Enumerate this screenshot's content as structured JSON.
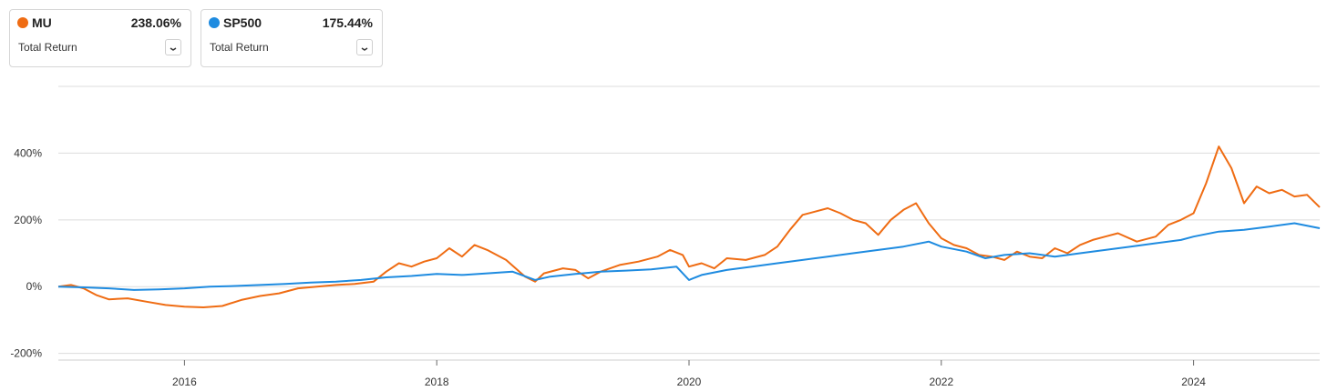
{
  "legend": [
    {
      "symbol": "MU",
      "value": "238.06%",
      "metric": "Total Return",
      "color": "#ef6c13",
      "toggle_icon": "chevron-down-icon"
    },
    {
      "symbol": "SP500",
      "value": "175.44%",
      "metric": "Total Return",
      "color": "#1e8be0",
      "toggle_icon": "chevron-down-icon"
    }
  ],
  "chart_data": {
    "type": "line",
    "xlim": [
      2015.0,
      2025.0
    ],
    "ylim": [
      -220,
      600
    ],
    "x_ticks": [
      2016,
      2018,
      2020,
      2022,
      2024
    ],
    "x_tick_labels": [
      "2016",
      "2018",
      "2020",
      "2022",
      "2024"
    ],
    "y_ticks": [
      -200,
      0,
      200,
      400,
      600
    ],
    "y_tick_labels": [
      "-200%",
      "0%",
      "200%",
      "400%",
      ""
    ],
    "grid": true,
    "legend_position": "top-left",
    "series": [
      {
        "name": "MU",
        "color": "#ef6c13",
        "points": [
          [
            2015.0,
            0
          ],
          [
            2015.1,
            5
          ],
          [
            2015.2,
            -5
          ],
          [
            2015.3,
            -25
          ],
          [
            2015.4,
            -38
          ],
          [
            2015.55,
            -35
          ],
          [
            2015.7,
            -45
          ],
          [
            2015.85,
            -55
          ],
          [
            2016.0,
            -60
          ],
          [
            2016.15,
            -62
          ],
          [
            2016.3,
            -58
          ],
          [
            2016.45,
            -40
          ],
          [
            2016.6,
            -28
          ],
          [
            2016.75,
            -20
          ],
          [
            2016.9,
            -5
          ],
          [
            2017.05,
            0
          ],
          [
            2017.2,
            5
          ],
          [
            2017.35,
            8
          ],
          [
            2017.5,
            15
          ],
          [
            2017.6,
            45
          ],
          [
            2017.7,
            70
          ],
          [
            2017.8,
            60
          ],
          [
            2017.9,
            75
          ],
          [
            2018.0,
            85
          ],
          [
            2018.1,
            115
          ],
          [
            2018.2,
            90
          ],
          [
            2018.3,
            125
          ],
          [
            2018.4,
            110
          ],
          [
            2018.55,
            80
          ],
          [
            2018.7,
            30
          ],
          [
            2018.78,
            15
          ],
          [
            2018.85,
            40
          ],
          [
            2019.0,
            55
          ],
          [
            2019.1,
            50
          ],
          [
            2019.2,
            25
          ],
          [
            2019.3,
            45
          ],
          [
            2019.45,
            65
          ],
          [
            2019.6,
            75
          ],
          [
            2019.75,
            90
          ],
          [
            2019.85,
            110
          ],
          [
            2019.95,
            95
          ],
          [
            2020.0,
            60
          ],
          [
            2020.1,
            70
          ],
          [
            2020.2,
            55
          ],
          [
            2020.3,
            85
          ],
          [
            2020.45,
            80
          ],
          [
            2020.6,
            95
          ],
          [
            2020.7,
            120
          ],
          [
            2020.8,
            170
          ],
          [
            2020.9,
            215
          ],
          [
            2021.0,
            225
          ],
          [
            2021.1,
            235
          ],
          [
            2021.2,
            220
          ],
          [
            2021.3,
            200
          ],
          [
            2021.4,
            190
          ],
          [
            2021.5,
            155
          ],
          [
            2021.6,
            200
          ],
          [
            2021.7,
            230
          ],
          [
            2021.8,
            250
          ],
          [
            2021.9,
            190
          ],
          [
            2022.0,
            145
          ],
          [
            2022.1,
            125
          ],
          [
            2022.2,
            115
          ],
          [
            2022.3,
            95
          ],
          [
            2022.4,
            90
          ],
          [
            2022.5,
            80
          ],
          [
            2022.6,
            105
          ],
          [
            2022.7,
            90
          ],
          [
            2022.8,
            85
          ],
          [
            2022.9,
            115
          ],
          [
            2023.0,
            100
          ],
          [
            2023.1,
            125
          ],
          [
            2023.2,
            140
          ],
          [
            2023.3,
            150
          ],
          [
            2023.4,
            160
          ],
          [
            2023.55,
            135
          ],
          [
            2023.7,
            150
          ],
          [
            2023.8,
            185
          ],
          [
            2023.9,
            200
          ],
          [
            2024.0,
            220
          ],
          [
            2024.1,
            310
          ],
          [
            2024.2,
            420
          ],
          [
            2024.3,
            355
          ],
          [
            2024.4,
            250
          ],
          [
            2024.5,
            300
          ],
          [
            2024.6,
            280
          ],
          [
            2024.7,
            290
          ],
          [
            2024.8,
            270
          ],
          [
            2024.9,
            275
          ],
          [
            2025.0,
            238
          ]
        ]
      },
      {
        "name": "SP500",
        "color": "#1e8be0",
        "points": [
          [
            2015.0,
            0
          ],
          [
            2015.2,
            -2
          ],
          [
            2015.4,
            -5
          ],
          [
            2015.6,
            -10
          ],
          [
            2015.8,
            -8
          ],
          [
            2016.0,
            -5
          ],
          [
            2016.2,
            0
          ],
          [
            2016.4,
            2
          ],
          [
            2016.6,
            5
          ],
          [
            2016.8,
            8
          ],
          [
            2017.0,
            12
          ],
          [
            2017.2,
            15
          ],
          [
            2017.4,
            20
          ],
          [
            2017.6,
            28
          ],
          [
            2017.8,
            32
          ],
          [
            2018.0,
            38
          ],
          [
            2018.2,
            35
          ],
          [
            2018.4,
            40
          ],
          [
            2018.6,
            45
          ],
          [
            2018.78,
            20
          ],
          [
            2018.9,
            30
          ],
          [
            2019.1,
            38
          ],
          [
            2019.3,
            45
          ],
          [
            2019.5,
            48
          ],
          [
            2019.7,
            52
          ],
          [
            2019.9,
            60
          ],
          [
            2020.0,
            20
          ],
          [
            2020.1,
            35
          ],
          [
            2020.3,
            50
          ],
          [
            2020.5,
            60
          ],
          [
            2020.7,
            70
          ],
          [
            2020.9,
            80
          ],
          [
            2021.1,
            90
          ],
          [
            2021.3,
            100
          ],
          [
            2021.5,
            110
          ],
          [
            2021.7,
            120
          ],
          [
            2021.9,
            135
          ],
          [
            2022.0,
            120
          ],
          [
            2022.2,
            105
          ],
          [
            2022.35,
            85
          ],
          [
            2022.5,
            95
          ],
          [
            2022.7,
            100
          ],
          [
            2022.9,
            90
          ],
          [
            2023.1,
            100
          ],
          [
            2023.3,
            110
          ],
          [
            2023.5,
            120
          ],
          [
            2023.7,
            130
          ],
          [
            2023.9,
            140
          ],
          [
            2024.0,
            150
          ],
          [
            2024.2,
            165
          ],
          [
            2024.4,
            170
          ],
          [
            2024.6,
            180
          ],
          [
            2024.8,
            190
          ],
          [
            2025.0,
            175
          ]
        ]
      }
    ]
  }
}
